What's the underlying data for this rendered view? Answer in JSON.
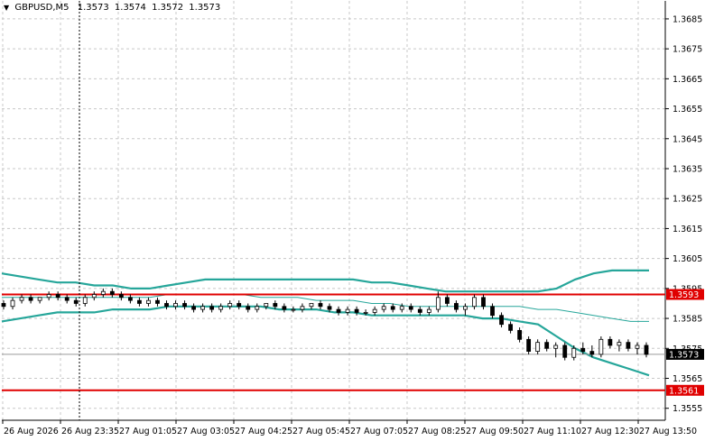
{
  "header": {
    "symbol": "GBPUSD,M5",
    "open": "1.3573",
    "high": "1.3574",
    "low": "1.3572",
    "close": "1.3573"
  },
  "colors": {
    "background": "#ffffff",
    "grid": "#c8c8c8",
    "candle": "#000000",
    "band_outer": "#26a69a",
    "band_mid": "#26a69a",
    "level_line": "#e00000",
    "level_label_bg": "#e00000",
    "price_label_bg": "#000000",
    "crosshair": "#000000"
  },
  "chart_data": {
    "type": "candlestick",
    "price_axis_ticks": [
      "1.3685",
      "1.3675",
      "1.3665",
      "1.3655",
      "1.3645",
      "1.3635",
      "1.3625",
      "1.3615",
      "1.3605",
      "1.3595",
      "1.3585",
      "1.3575",
      "1.3565",
      "1.3555"
    ],
    "time_axis_labels": [
      "26 Aug 2026",
      "26 Aug 23:35",
      "27 Aug 01:05",
      "27 Aug 03:05",
      "27 Aug 04:25",
      "27 Aug 05:45",
      "27 Aug 07:05",
      "27 Aug 08:25",
      "27 Aug 09:50",
      "27 Aug 11:10",
      "27 Aug 12:30",
      "27 Aug 13:50"
    ],
    "ylim": [
      1.3551,
      1.3691
    ],
    "levels": [
      {
        "label": "1.3593",
        "price": 1.3593
      },
      {
        "label": "1.3561",
        "price": 1.3561
      }
    ],
    "current_price_label": "1.3573",
    "current_price": 1.3573,
    "upper_band": [
      1.36,
      1.3599,
      1.3598,
      1.3597,
      1.3597,
      1.3596,
      1.3596,
      1.3595,
      1.3595,
      1.3596,
      1.3597,
      1.3598,
      1.3598,
      1.3598,
      1.3598,
      1.3598,
      1.3598,
      1.3598,
      1.3598,
      1.3598,
      1.3597,
      1.3597,
      1.3596,
      1.3595,
      1.3594,
      1.3594,
      1.3594,
      1.3594,
      1.3594,
      1.3594,
      1.3595,
      1.3598,
      1.36,
      1.3601,
      1.3601,
      1.3601
    ],
    "middle_line": [
      1.3592,
      1.3592,
      1.3592,
      1.3592,
      1.3592,
      1.3592,
      1.3592,
      1.3592,
      1.3592,
      1.3593,
      1.3593,
      1.3593,
      1.3593,
      1.3593,
      1.3592,
      1.3592,
      1.3592,
      1.3591,
      1.3591,
      1.3591,
      1.359,
      1.359,
      1.3589,
      1.3589,
      1.3589,
      1.3589,
      1.3589,
      1.3589,
      1.3589,
      1.3588,
      1.3588,
      1.3587,
      1.3586,
      1.3585,
      1.3584,
      1.3584
    ],
    "lower_band": [
      1.3584,
      1.3585,
      1.3586,
      1.3587,
      1.3587,
      1.3587,
      1.3588,
      1.3588,
      1.3588,
      1.3589,
      1.3589,
      1.3589,
      1.3589,
      1.3589,
      1.3589,
      1.3588,
      1.3588,
      1.3588,
      1.3587,
      1.3587,
      1.3586,
      1.3586,
      1.3586,
      1.3586,
      1.3586,
      1.3586,
      1.3585,
      1.3585,
      1.3584,
      1.3583,
      1.3579,
      1.3575,
      1.3572,
      1.357,
      1.3568,
      1.3566
    ],
    "candles": [
      [
        1.359,
        1.3591,
        1.3588,
        1.3589
      ],
      [
        1.3589,
        1.3592,
        1.3588,
        1.3591
      ],
      [
        1.3591,
        1.3593,
        1.359,
        1.3592
      ],
      [
        1.3592,
        1.3593,
        1.359,
        1.3591
      ],
      [
        1.3591,
        1.3592,
        1.359,
        1.3592
      ],
      [
        1.3592,
        1.3594,
        1.3591,
        1.3593
      ],
      [
        1.3593,
        1.3594,
        1.3591,
        1.3592
      ],
      [
        1.3592,
        1.3593,
        1.359,
        1.3591
      ],
      [
        1.3591,
        1.3592,
        1.3589,
        1.359
      ],
      [
        1.359,
        1.3593,
        1.3589,
        1.3592
      ],
      [
        1.3592,
        1.3594,
        1.3591,
        1.3593
      ],
      [
        1.3593,
        1.3595,
        1.3592,
        1.3594
      ],
      [
        1.3594,
        1.3595,
        1.3592,
        1.3593
      ],
      [
        1.3593,
        1.3594,
        1.3591,
        1.3592
      ],
      [
        1.3592,
        1.3593,
        1.359,
        1.3591
      ],
      [
        1.3591,
        1.3592,
        1.3589,
        1.359
      ],
      [
        1.359,
        1.3592,
        1.3589,
        1.3591
      ],
      [
        1.3591,
        1.3592,
        1.3589,
        1.359
      ],
      [
        1.359,
        1.3591,
        1.3588,
        1.3589
      ],
      [
        1.3589,
        1.3591,
        1.3588,
        1.359
      ],
      [
        1.359,
        1.3591,
        1.3588,
        1.3589
      ],
      [
        1.3589,
        1.359,
        1.3587,
        1.3588
      ],
      [
        1.3588,
        1.359,
        1.3587,
        1.3589
      ],
      [
        1.3589,
        1.359,
        1.3587,
        1.3588
      ],
      [
        1.3588,
        1.359,
        1.3587,
        1.3589
      ],
      [
        1.3589,
        1.3591,
        1.3588,
        1.359
      ],
      [
        1.359,
        1.3591,
        1.3588,
        1.3589
      ],
      [
        1.3589,
        1.359,
        1.3587,
        1.3588
      ],
      [
        1.3588,
        1.359,
        1.3587,
        1.3589
      ],
      [
        1.3589,
        1.359,
        1.3588,
        1.359
      ],
      [
        1.359,
        1.3591,
        1.3588,
        1.3589
      ],
      [
        1.3589,
        1.359,
        1.3587,
        1.3588
      ],
      [
        1.3588,
        1.3589,
        1.3587,
        1.3588
      ],
      [
        1.3588,
        1.359,
        1.3587,
        1.3589
      ],
      [
        1.3589,
        1.359,
        1.3588,
        1.359
      ],
      [
        1.359,
        1.3591,
        1.3588,
        1.3589
      ],
      [
        1.3589,
        1.359,
        1.3587,
        1.3588
      ],
      [
        1.3588,
        1.3589,
        1.3586,
        1.3587
      ],
      [
        1.3587,
        1.3589,
        1.3586,
        1.3588
      ],
      [
        1.3588,
        1.3589,
        1.3586,
        1.3587
      ],
      [
        1.3587,
        1.3588,
        1.3586,
        1.3587
      ],
      [
        1.3587,
        1.3589,
        1.3586,
        1.3588
      ],
      [
        1.3588,
        1.359,
        1.3587,
        1.3589
      ],
      [
        1.3589,
        1.359,
        1.3587,
        1.3588
      ],
      [
        1.3588,
        1.359,
        1.3587,
        1.3589
      ],
      [
        1.3589,
        1.359,
        1.3587,
        1.3588
      ],
      [
        1.3588,
        1.3589,
        1.3586,
        1.3587
      ],
      [
        1.3587,
        1.3589,
        1.3586,
        1.3588
      ],
      [
        1.3588,
        1.3594,
        1.3587,
        1.3592
      ],
      [
        1.3592,
        1.3593,
        1.3589,
        1.359
      ],
      [
        1.359,
        1.3591,
        1.3587,
        1.3588
      ],
      [
        1.3588,
        1.359,
        1.3586,
        1.3589
      ],
      [
        1.3589,
        1.3593,
        1.3588,
        1.3592
      ],
      [
        1.3592,
        1.3593,
        1.3588,
        1.3589
      ],
      [
        1.3589,
        1.359,
        1.3585,
        1.3586
      ],
      [
        1.3586,
        1.3587,
        1.3582,
        1.3583
      ],
      [
        1.3583,
        1.3584,
        1.358,
        1.3581
      ],
      [
        1.3581,
        1.3582,
        1.3577,
        1.3578
      ],
      [
        1.3578,
        1.3579,
        1.3573,
        1.3574
      ],
      [
        1.3574,
        1.3578,
        1.3573,
        1.3577
      ],
      [
        1.3577,
        1.3578,
        1.3574,
        1.3575
      ],
      [
        1.3575,
        1.3577,
        1.3572,
        1.3576
      ],
      [
        1.3576,
        1.3577,
        1.3571,
        1.3572
      ],
      [
        1.3572,
        1.3576,
        1.3571,
        1.3575
      ],
      [
        1.3575,
        1.3577,
        1.3573,
        1.3574
      ],
      [
        1.3574,
        1.3576,
        1.3572,
        1.3573
      ],
      [
        1.3573,
        1.3579,
        1.3572,
        1.3578
      ],
      [
        1.3578,
        1.3579,
        1.3575,
        1.3576
      ],
      [
        1.3576,
        1.3578,
        1.3574,
        1.3577
      ],
      [
        1.3577,
        1.3578,
        1.3574,
        1.3575
      ],
      [
        1.3575,
        1.3577,
        1.3573,
        1.3576
      ],
      [
        1.3576,
        1.3577,
        1.3572,
        1.3573
      ]
    ]
  }
}
